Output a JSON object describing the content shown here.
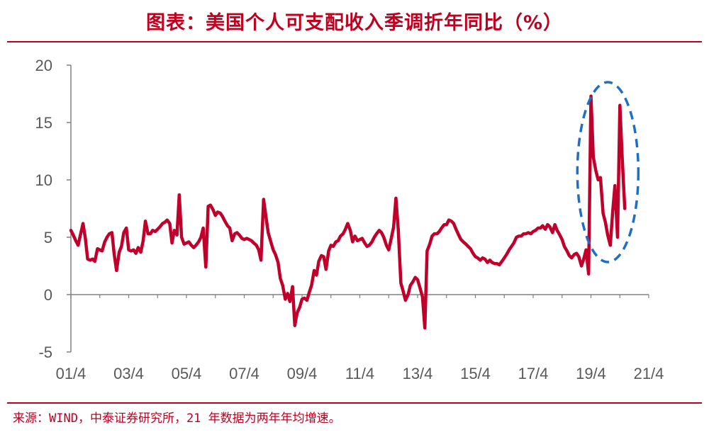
{
  "title": "图表：美国个人可支配收入季调折年同比（%）",
  "source": "来源：WIND，中泰证券研究所，21 年数据为两年年均增速。",
  "colors": {
    "accent": "#c0001f",
    "line": "#c0002a",
    "highlight": "#1f6fc4",
    "axis": "#808080",
    "text": "#595959"
  },
  "chart_data": {
    "type": "line",
    "title": "图表：美国个人可支配收入季调折年同比（%）",
    "xlabel": "",
    "ylabel": "",
    "ylim": [
      -5,
      20
    ],
    "yticks": [
      -5,
      0,
      5,
      10,
      15,
      20
    ],
    "xticks": [
      "01/4",
      "03/4",
      "05/4",
      "07/4",
      "09/4",
      "11/4",
      "13/4",
      "15/4",
      "17/4",
      "19/4",
      "21/4"
    ],
    "grid": false,
    "annotation": "dashed blue ellipse highlighting 2020–2021 spikes",
    "series": [
      {
        "values": [
          [
            2001.25,
            5.6
          ],
          [
            2001.33,
            5.2
          ],
          [
            2001.42,
            4.7
          ],
          [
            2001.5,
            4.3
          ],
          [
            2001.58,
            5.2
          ],
          [
            2001.67,
            6.2
          ],
          [
            2001.75,
            4.9
          ],
          [
            2001.83,
            3.1
          ],
          [
            2001.92,
            3.0
          ],
          [
            2002.0,
            3.1
          ],
          [
            2002.08,
            2.9
          ],
          [
            2002.17,
            4.0
          ],
          [
            2002.25,
            3.9
          ],
          [
            2002.33,
            3.8
          ],
          [
            2002.42,
            4.6
          ],
          [
            2002.5,
            5.0
          ],
          [
            2002.58,
            5.3
          ],
          [
            2002.67,
            5.4
          ],
          [
            2002.75,
            3.5
          ],
          [
            2002.83,
            2.1
          ],
          [
            2002.92,
            3.7
          ],
          [
            2003.0,
            4.2
          ],
          [
            2003.08,
            5.4
          ],
          [
            2003.17,
            5.8
          ],
          [
            2003.25,
            3.9
          ],
          [
            2003.33,
            3.8
          ],
          [
            2003.42,
            3.9
          ],
          [
            2003.5,
            3.6
          ],
          [
            2003.58,
            4.1
          ],
          [
            2003.67,
            3.7
          ],
          [
            2003.75,
            4.7
          ],
          [
            2003.83,
            6.4
          ],
          [
            2003.92,
            5.3
          ],
          [
            2004.0,
            5.3
          ],
          [
            2004.08,
            5.6
          ],
          [
            2004.17,
            5.5
          ],
          [
            2004.25,
            5.7
          ],
          [
            2004.33,
            5.9
          ],
          [
            2004.42,
            6.2
          ],
          [
            2004.5,
            6.3
          ],
          [
            2004.58,
            6.5
          ],
          [
            2004.67,
            6.2
          ],
          [
            2004.75,
            4.5
          ],
          [
            2004.83,
            5.6
          ],
          [
            2004.92,
            5.2
          ],
          [
            2005.0,
            8.7
          ],
          [
            2005.08,
            5.0
          ],
          [
            2005.17,
            4.4
          ],
          [
            2005.25,
            4.5
          ],
          [
            2005.33,
            4.6
          ],
          [
            2005.42,
            4.3
          ],
          [
            2005.5,
            4.1
          ],
          [
            2005.58,
            4.3
          ],
          [
            2005.67,
            4.6
          ],
          [
            2005.75,
            5.0
          ],
          [
            2005.83,
            5.8
          ],
          [
            2005.92,
            2.4
          ],
          [
            2006.0,
            7.7
          ],
          [
            2006.08,
            7.8
          ],
          [
            2006.17,
            7.4
          ],
          [
            2006.25,
            6.9
          ],
          [
            2006.33,
            7.2
          ],
          [
            2006.42,
            7.1
          ],
          [
            2006.5,
            6.8
          ],
          [
            2006.58,
            6.4
          ],
          [
            2006.67,
            6.0
          ],
          [
            2006.75,
            5.8
          ],
          [
            2006.83,
            4.7
          ],
          [
            2006.92,
            5.3
          ],
          [
            2007.0,
            5.4
          ],
          [
            2007.08,
            5.2
          ],
          [
            2007.17,
            4.9
          ],
          [
            2007.25,
            4.8
          ],
          [
            2007.33,
            4.9
          ],
          [
            2007.42,
            4.8
          ],
          [
            2007.5,
            4.7
          ],
          [
            2007.58,
            4.5
          ],
          [
            2007.67,
            4.3
          ],
          [
            2007.75,
            3.9
          ],
          [
            2007.83,
            3.0
          ],
          [
            2007.92,
            8.3
          ],
          [
            2008.0,
            6.8
          ],
          [
            2008.08,
            5.4
          ],
          [
            2008.17,
            4.6
          ],
          [
            2008.25,
            3.9
          ],
          [
            2008.33,
            3.5
          ],
          [
            2008.42,
            2.8
          ],
          [
            2008.5,
            1.4
          ],
          [
            2008.58,
            0.8
          ],
          [
            2008.67,
            -0.4
          ],
          [
            2008.75,
            0.1
          ],
          [
            2008.83,
            -0.6
          ],
          [
            2008.92,
            0.7
          ],
          [
            2009.0,
            -2.7
          ],
          [
            2009.08,
            -1.6
          ],
          [
            2009.17,
            -1.1
          ],
          [
            2009.25,
            -0.4
          ],
          [
            2009.33,
            -0.3
          ],
          [
            2009.42,
            -0.5
          ],
          [
            2009.5,
            0.2
          ],
          [
            2009.58,
            0.8
          ],
          [
            2009.67,
            2.1
          ],
          [
            2009.75,
            1.7
          ],
          [
            2009.83,
            2.9
          ],
          [
            2009.92,
            3.4
          ],
          [
            2010.0,
            3.3
          ],
          [
            2010.08,
            2.2
          ],
          [
            2010.17,
            3.8
          ],
          [
            2010.25,
            4.3
          ],
          [
            2010.33,
            4.2
          ],
          [
            2010.42,
            4.6
          ],
          [
            2010.5,
            4.7
          ],
          [
            2010.58,
            5.1
          ],
          [
            2010.67,
            5.3
          ],
          [
            2010.75,
            5.7
          ],
          [
            2010.83,
            6.2
          ],
          [
            2010.92,
            5.6
          ],
          [
            2011.0,
            4.6
          ],
          [
            2011.08,
            5.1
          ],
          [
            2011.17,
            4.7
          ],
          [
            2011.25,
            4.8
          ],
          [
            2011.33,
            4.9
          ],
          [
            2011.42,
            4.5
          ],
          [
            2011.5,
            4.2
          ],
          [
            2011.58,
            4.3
          ],
          [
            2011.67,
            4.6
          ],
          [
            2011.75,
            5.0
          ],
          [
            2011.83,
            5.3
          ],
          [
            2011.92,
            5.6
          ],
          [
            2012.0,
            5.4
          ],
          [
            2012.08,
            5.0
          ],
          [
            2012.17,
            4.3
          ],
          [
            2012.25,
            3.9
          ],
          [
            2012.33,
            4.8
          ],
          [
            2012.42,
            5.9
          ],
          [
            2012.5,
            8.4
          ],
          [
            2012.58,
            5.7
          ],
          [
            2012.67,
            1.0
          ],
          [
            2012.75,
            0.3
          ],
          [
            2012.83,
            -0.5
          ],
          [
            2012.92,
            0.0
          ],
          [
            2013.0,
            0.8
          ],
          [
            2013.08,
            1.1
          ],
          [
            2013.17,
            1.5
          ],
          [
            2013.25,
            1.3
          ],
          [
            2013.33,
            0.6
          ],
          [
            2013.42,
            -0.2
          ],
          [
            2013.5,
            -2.9
          ],
          [
            2013.58,
            3.8
          ],
          [
            2013.67,
            4.4
          ],
          [
            2013.75,
            5.1
          ],
          [
            2013.83,
            5.3
          ],
          [
            2013.92,
            5.3
          ],
          [
            2014.0,
            5.5
          ],
          [
            2014.08,
            5.8
          ],
          [
            2014.17,
            6.1
          ],
          [
            2014.25,
            6.1
          ],
          [
            2014.33,
            6.5
          ],
          [
            2014.42,
            6.4
          ],
          [
            2014.5,
            6.2
          ],
          [
            2014.58,
            5.7
          ],
          [
            2014.67,
            5.2
          ],
          [
            2014.75,
            4.8
          ],
          [
            2014.83,
            4.6
          ],
          [
            2014.92,
            4.4
          ],
          [
            2015.0,
            4.2
          ],
          [
            2015.08,
            4.0
          ],
          [
            2015.17,
            3.6
          ],
          [
            2015.25,
            3.3
          ],
          [
            2015.33,
            3.2
          ],
          [
            2015.42,
            3.0
          ],
          [
            2015.5,
            3.2
          ],
          [
            2015.58,
            3.1
          ],
          [
            2015.67,
            2.8
          ],
          [
            2015.75,
            3.0
          ],
          [
            2015.83,
            2.8
          ],
          [
            2015.92,
            2.7
          ],
          [
            2016.0,
            2.7
          ],
          [
            2016.08,
            2.6
          ],
          [
            2016.17,
            2.9
          ],
          [
            2016.25,
            3.2
          ],
          [
            2016.33,
            3.5
          ],
          [
            2016.42,
            3.9
          ],
          [
            2016.5,
            4.2
          ],
          [
            2016.58,
            4.5
          ],
          [
            2016.67,
            5.0
          ],
          [
            2016.75,
            5.1
          ],
          [
            2016.83,
            5.1
          ],
          [
            2016.92,
            5.3
          ],
          [
            2017.0,
            5.3
          ],
          [
            2017.08,
            5.4
          ],
          [
            2017.17,
            5.3
          ],
          [
            2017.25,
            5.5
          ],
          [
            2017.33,
            5.6
          ],
          [
            2017.42,
            5.8
          ],
          [
            2017.5,
            5.8
          ],
          [
            2017.58,
            6.0
          ],
          [
            2017.67,
            5.7
          ],
          [
            2017.75,
            6.1
          ],
          [
            2017.83,
            5.9
          ],
          [
            2017.92,
            5.4
          ],
          [
            2018.0,
            6.1
          ],
          [
            2018.08,
            5.6
          ],
          [
            2018.17,
            5.2
          ],
          [
            2018.25,
            4.8
          ],
          [
            2018.33,
            4.2
          ],
          [
            2018.42,
            3.8
          ],
          [
            2018.5,
            3.4
          ],
          [
            2018.58,
            3.2
          ],
          [
            2018.67,
            3.5
          ],
          [
            2018.75,
            3.6
          ],
          [
            2018.83,
            3.3
          ],
          [
            2018.92,
            2.5
          ],
          [
            2019.0,
            3.1
          ],
          [
            2019.08,
            3.9
          ],
          [
            2019.17,
            1.8
          ],
          [
            2019.25,
            17.3
          ],
          [
            2019.33,
            12.0
          ],
          [
            2019.42,
            10.8
          ],
          [
            2019.5,
            10.0
          ],
          [
            2019.58,
            10.2
          ],
          [
            2019.67,
            7.1
          ],
          [
            2019.75,
            6.3
          ],
          [
            2019.83,
            5.2
          ],
          [
            2019.92,
            4.3
          ],
          [
            2020.0,
            7.2
          ],
          [
            2020.08,
            9.5
          ],
          [
            2020.17,
            5.0
          ],
          [
            2020.25,
            16.5
          ],
          [
            2020.33,
            12.0
          ],
          [
            2020.42,
            7.5
          ]
        ]
      }
    ]
  }
}
